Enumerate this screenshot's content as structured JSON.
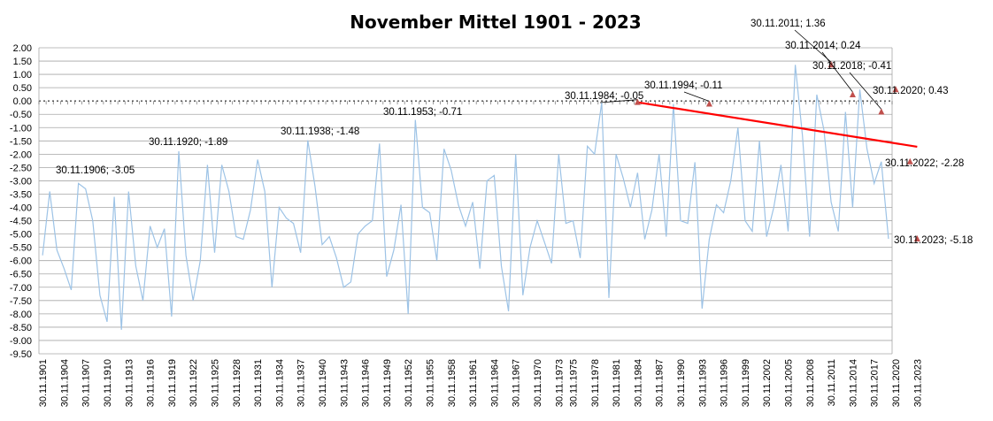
{
  "chart_data": {
    "type": "line",
    "title": "November Mittel 1901 - 2023",
    "xlabel": "",
    "ylabel": "",
    "ylim": [
      -9.5,
      2.0
    ],
    "ystep": 0.5,
    "grid": true,
    "legend": "none",
    "colors": {
      "series": "#9dc3e6",
      "trend": "#ff0000",
      "marker": "#c0504d"
    },
    "x_tick_labels": [
      "30.11.1901",
      "30.11.1904",
      "30.11.1907",
      "30.11.1910",
      "30.11.1913",
      "30.11.1916",
      "30.11.1919",
      "30.11.1922",
      "30.11.1925",
      "30.11.1928",
      "30.11.1931",
      "30.11.1934",
      "30.11.1937",
      "30.11.1940",
      "30.11.1943",
      "30.11.1946",
      "30.11.1949",
      "30.11.1952",
      "30.11.1955",
      "30.11.1958",
      "30.11.1961",
      "30.11.1964",
      "30.11.1967",
      "30.11.1970",
      "30.11.1973",
      "30.11.1975",
      "30.11.1978",
      "30.11.1981",
      "30.11.1984",
      "30.11.1987",
      "30.11.1990",
      "30.11.1993",
      "30.11.1996",
      "30.11.1999",
      "30.11.2002",
      "30.11.2005",
      "30.11.2008",
      "30.11.2011",
      "30.11.2014",
      "30.11.2017",
      "30.11.2020",
      "30.11.2023"
    ],
    "x_start_year": 1901,
    "series": [
      {
        "values": [
          -5.8,
          -3.4,
          -5.6,
          -6.3,
          -7.1,
          -3.1,
          -3.3,
          -4.5,
          -7.3,
          -8.3,
          -3.6,
          -8.6,
          -3.4,
          -6.2,
          -7.5,
          -4.7,
          -5.5,
          -4.8,
          -8.1,
          -1.89,
          -5.8,
          -7.5,
          -6.0,
          -2.4,
          -5.7,
          -2.4,
          -3.4,
          -5.1,
          -5.2,
          -4.1,
          -2.2,
          -3.4,
          -7.0,
          -4.0,
          -4.4,
          -4.6,
          -5.7,
          -1.48,
          -3.2,
          -5.4,
          -5.1,
          -5.9,
          -7.0,
          -6.8,
          -5.0,
          -4.7,
          -4.5,
          -1.6,
          -6.6,
          -5.6,
          -3.9,
          -8.0,
          -0.71,
          -4.0,
          -4.2,
          -6.0,
          -1.8,
          -2.6,
          -3.9,
          -4.7,
          -3.8,
          -6.3,
          -3.0,
          -2.8,
          -6.2,
          -7.9,
          -2.0,
          -7.3,
          -5.5,
          -4.5,
          -5.3,
          -6.1,
          -2.0,
          -4.6,
          -4.5,
          -5.9,
          -1.7,
          -2.0,
          -0.05,
          -7.4,
          -2.0,
          -2.9,
          -4.0,
          -2.7,
          -5.2,
          -4.1,
          -2.0,
          -5.1,
          -0.11,
          -4.5,
          -4.6,
          -2.3,
          -7.8,
          -5.2,
          -3.9,
          -4.2,
          -3.0,
          -1.0,
          -4.5,
          -4.9,
          -1.5,
          -5.1,
          -4.0,
          -2.4,
          -4.9,
          1.36,
          -1.3,
          -5.1,
          0.24,
          -1.1,
          -3.8,
          -4.9,
          -0.41,
          -4.0,
          0.43,
          -1.8,
          -3.1,
          -2.28,
          -5.18
        ]
      }
    ],
    "trend": {
      "start_year": 1984,
      "start_value": -0.05,
      "end_year": 2023,
      "end_value": -1.72
    },
    "annotations": [
      {
        "label": "30.11.1906; -3.05"
      },
      {
        "label": "30.11.1920; -1.89"
      },
      {
        "label": "30.11.1938; -1.48"
      },
      {
        "label": "30.11.1953; -0.71"
      },
      {
        "label": "30.11.1984; -0.05",
        "year": 1984,
        "value": -0.05,
        "marker": true
      },
      {
        "label": "30.11.1994; -0.11",
        "year": 1994,
        "value": -0.11,
        "marker": true
      },
      {
        "label": "30.11.2011; 1.36",
        "year": 2011,
        "value": 1.36,
        "marker": true
      },
      {
        "label": "30.11.2014; 0.24",
        "year": 2014,
        "value": 0.24,
        "marker": true
      },
      {
        "label": "30.11.2018; -0.41",
        "year": 2018,
        "value": -0.41,
        "marker": true
      },
      {
        "label": "30.11.2020; 0.43",
        "year": 2020,
        "value": 0.43,
        "marker": true
      },
      {
        "label": "30.11.2022; -2.28",
        "year": 2022,
        "value": -2.28,
        "marker": true
      },
      {
        "label": "30.11.2023; -5.18",
        "year": 2023,
        "value": -5.18,
        "marker": true
      }
    ]
  }
}
